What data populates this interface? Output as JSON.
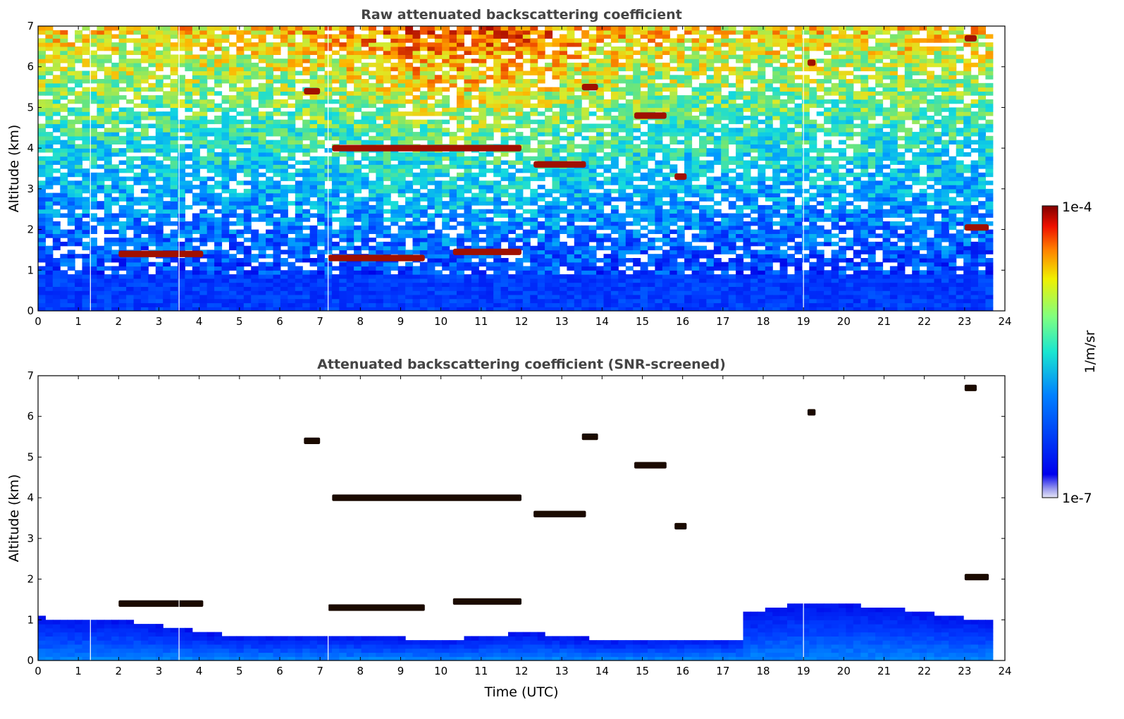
{
  "chart_data": [
    {
      "type": "heatmap",
      "title": "Raw attenuated backscattering coefficient",
      "xlabel": "",
      "ylabel": "Altitude (km)",
      "xlim": [
        0,
        24
      ],
      "ylim": [
        0,
        7
      ],
      "xticks": [
        "0",
        "1",
        "2",
        "3",
        "4",
        "5",
        "6",
        "7",
        "8",
        "9",
        "10",
        "11",
        "12",
        "13",
        "14",
        "15",
        "16",
        "17",
        "18",
        "19",
        "20",
        "21",
        "22",
        "23",
        "24"
      ],
      "yticks": [
        "0",
        "1",
        "2",
        "3",
        "4",
        "5",
        "6",
        "7"
      ],
      "data_end_time": 23.7,
      "data_gaps_time": [
        1.3,
        3.5,
        7.2,
        19.0
      ],
      "cloud_layers": [
        {
          "t_start": 2.0,
          "t_end": 4.1,
          "alt": 1.4
        },
        {
          "t_start": 7.2,
          "t_end": 9.6,
          "alt": 1.3
        },
        {
          "t_start": 10.3,
          "t_end": 12.0,
          "alt": 1.45
        },
        {
          "t_start": 7.3,
          "t_end": 12.0,
          "alt": 4.0
        },
        {
          "t_start": 12.3,
          "t_end": 13.6,
          "alt": 3.6
        },
        {
          "t_start": 6.6,
          "t_end": 7.0,
          "alt": 5.4
        },
        {
          "t_start": 13.5,
          "t_end": 13.9,
          "alt": 5.5
        },
        {
          "t_start": 14.8,
          "t_end": 15.6,
          "alt": 4.8
        },
        {
          "t_start": 15.8,
          "t_end": 16.1,
          "alt": 3.3
        },
        {
          "t_start": 19.1,
          "t_end": 19.3,
          "alt": 6.1
        },
        {
          "t_start": 23.0,
          "t_end": 23.3,
          "alt": 6.7
        },
        {
          "t_start": 23.0,
          "t_end": 23.6,
          "alt": 2.05
        }
      ]
    },
    {
      "type": "heatmap",
      "title": "Attenuated backscattering coefficient (SNR-screened)",
      "xlabel": "Time (UTC)",
      "ylabel": "Altitude (km)",
      "xlim": [
        0,
        24
      ],
      "ylim": [
        0,
        7
      ],
      "xticks": [
        "0",
        "1",
        "2",
        "3",
        "4",
        "5",
        "6",
        "7",
        "8",
        "9",
        "10",
        "11",
        "12",
        "13",
        "14",
        "15",
        "16",
        "17",
        "18",
        "19",
        "20",
        "21",
        "22",
        "23",
        "24"
      ],
      "yticks": [
        "0",
        "1",
        "2",
        "3",
        "4",
        "5",
        "6",
        "7"
      ],
      "data_end_time": 23.7,
      "boundary_layer_top_km": [
        [
          0,
          1.0
        ],
        [
          2,
          0.95
        ],
        [
          4,
          0.65
        ],
        [
          5,
          0.55
        ],
        [
          7,
          0.6
        ],
        [
          8,
          0.55
        ],
        [
          10,
          0.45
        ],
        [
          12,
          0.65
        ],
        [
          14,
          0.45
        ],
        [
          17.4,
          0.5
        ],
        [
          17.5,
          1.1
        ],
        [
          19,
          1.4
        ],
        [
          21,
          1.25
        ],
        [
          23.7,
          0.9
        ]
      ]
    }
  ],
  "colorbar": {
    "label": "1/m/sr",
    "max_label": "1e-4",
    "min_label": "1e-7",
    "scale": "log",
    "colormap": "jet"
  }
}
